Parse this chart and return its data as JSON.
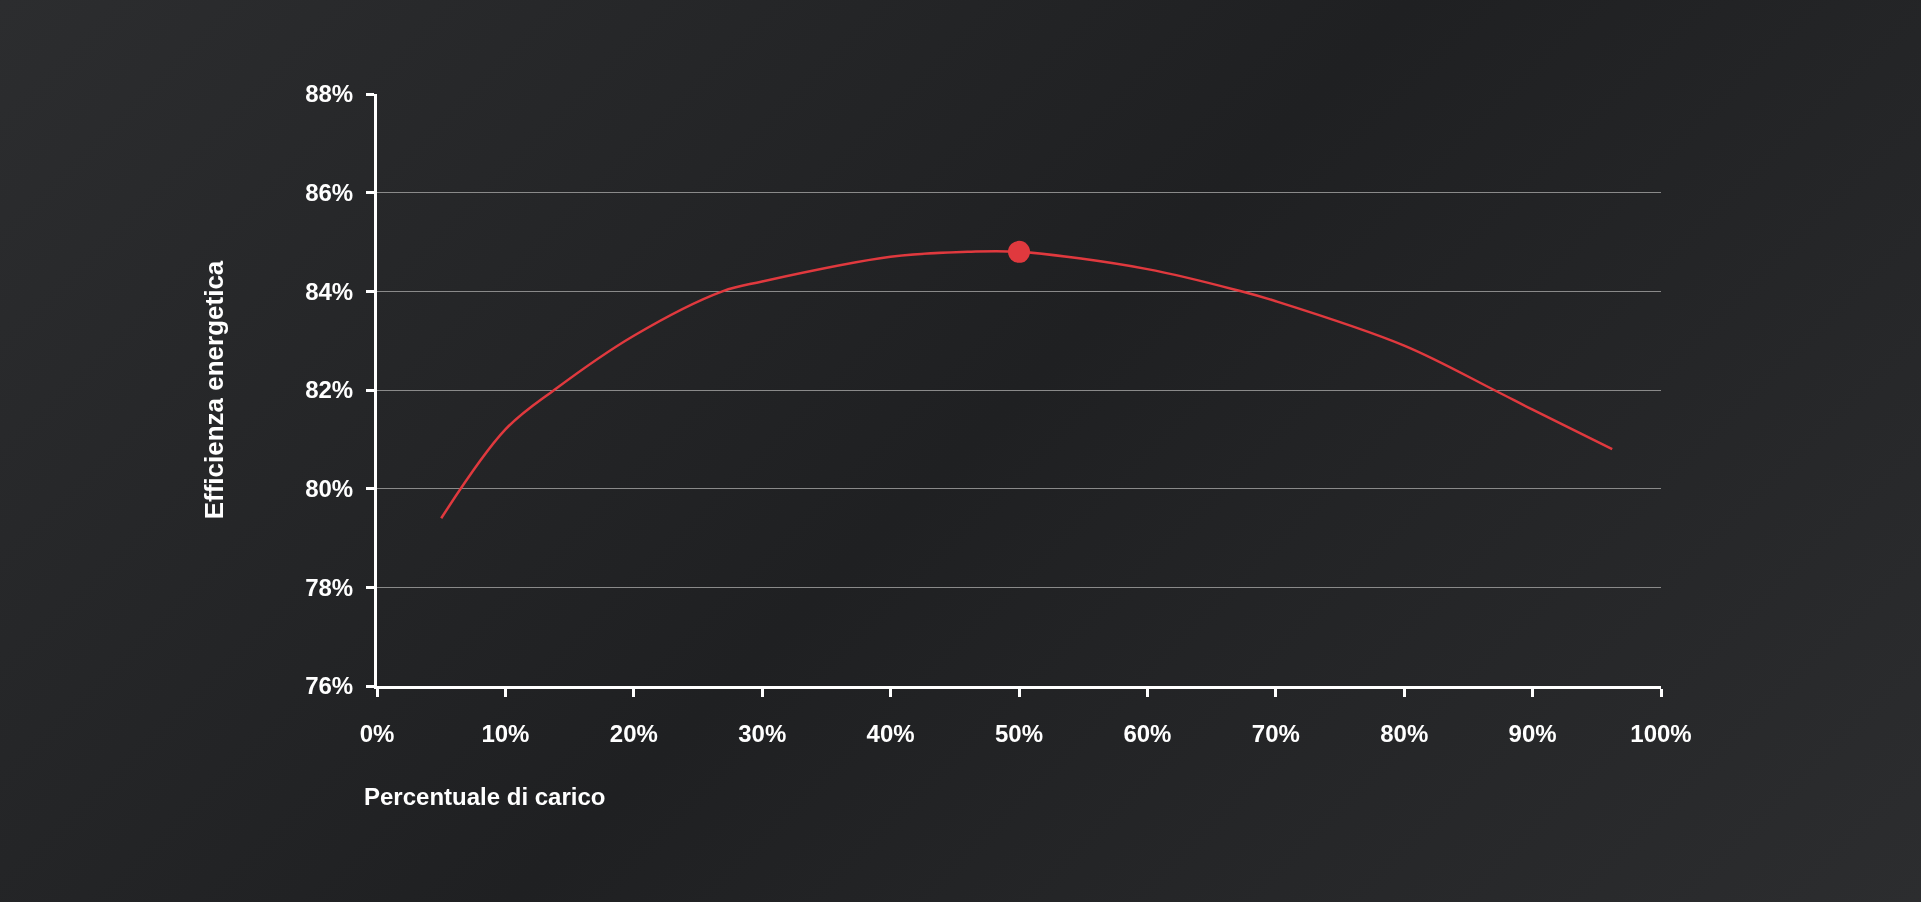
{
  "chart_data": {
    "type": "line",
    "xlabel": "Percentuale di carico",
    "ylabel": "Efficienza energetica",
    "series": [
      {
        "color": "#e0393e",
        "marker": "none",
        "x": [
          5,
          10,
          13.8,
          20,
          26.9,
          30,
          40,
          46,
          50,
          60,
          67.3,
          70,
          80,
          87,
          90,
          96.2
        ],
        "values": [
          79.4,
          81.2,
          82,
          83.1,
          84,
          84.2,
          84.7,
          84.8,
          84.8,
          84.45,
          84,
          83.8,
          82.9,
          82,
          81.6,
          80.8
        ]
      },
      {
        "type": "scatter",
        "color": "#e0393e",
        "marker": "circle",
        "x": [
          50
        ],
        "values": [
          84.8
        ]
      }
    ],
    "xlim": [
      0,
      100
    ],
    "xticks": [
      {
        "value": 0,
        "label": "0%"
      },
      {
        "value": 10,
        "label": "10%"
      },
      {
        "value": 20,
        "label": "20%"
      },
      {
        "value": 30,
        "label": "30%"
      },
      {
        "value": 40,
        "label": "40%"
      },
      {
        "value": 50,
        "label": "50%"
      },
      {
        "value": 60,
        "label": "60%"
      },
      {
        "value": 70,
        "label": "70%"
      },
      {
        "value": 80,
        "label": "80%"
      },
      {
        "value": 90,
        "label": "90%"
      },
      {
        "value": 100,
        "label": "100%"
      }
    ],
    "ylim": [
      76,
      88
    ],
    "yticks": [
      {
        "value": 76,
        "label": "76%"
      },
      {
        "value": 78,
        "label": "78%"
      },
      {
        "value": 80,
        "label": "80%"
      },
      {
        "value": 82,
        "label": "82%"
      },
      {
        "value": 84,
        "label": "84%"
      },
      {
        "value": 86,
        "label": "86%"
      },
      {
        "value": 88,
        "label": "88%"
      }
    ],
    "grid": "y",
    "legend": false
  }
}
